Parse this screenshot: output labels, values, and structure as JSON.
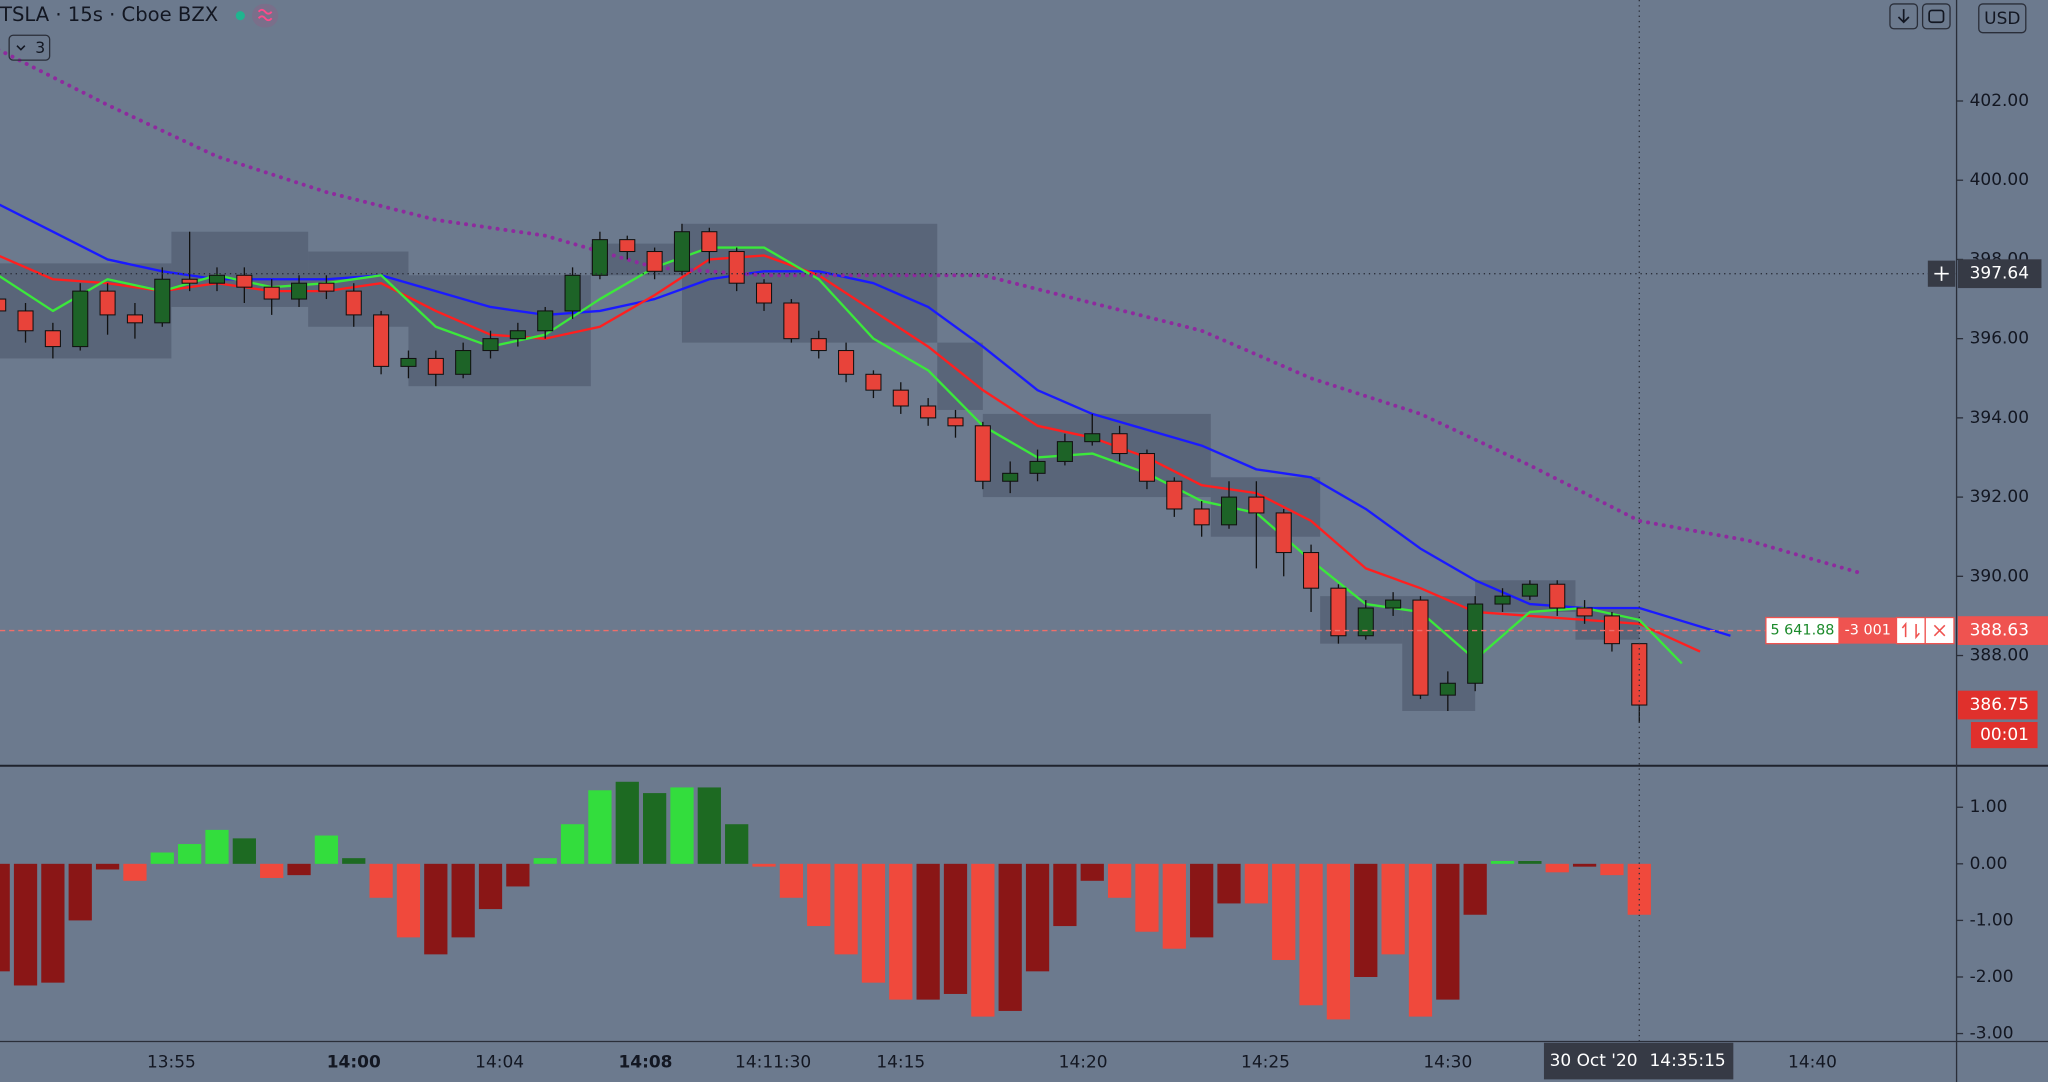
{
  "header": {
    "symbol_title": "TSLA · 15s · Cboe BZX",
    "indicators_hidden": 3,
    "currency": "USD"
  },
  "chart_data": [
    {
      "type": "candlestick",
      "xlim": [
        "13:50:18",
        "14:43:57"
      ],
      "ylim": [
        385.25,
        404.55
      ],
      "yticks": [
        {
          "value": 402,
          "label": "402.00"
        },
        {
          "value": 400,
          "label": "400.00"
        },
        {
          "value": 398,
          "label": "398.00"
        },
        {
          "value": 396,
          "label": "396.00"
        },
        {
          "value": 394,
          "label": "394.00"
        },
        {
          "value": 392,
          "label": "392.00"
        },
        {
          "value": 390,
          "label": "390.00"
        },
        {
          "value": 388,
          "label": "388.00"
        }
      ],
      "xticks": [
        {
          "value": "13:55"
        },
        {
          "value": "14:00",
          "bold": true
        },
        {
          "value": "14:04"
        },
        {
          "value": "14:08",
          "bold": true
        },
        {
          "value": "14:11:30"
        },
        {
          "value": "14:15"
        },
        {
          "value": "14:20"
        },
        {
          "value": "14:25"
        },
        {
          "value": "14:30"
        },
        {
          "value": "14:40"
        }
      ],
      "x": [
        "13:50:15",
        "13:51:00",
        "13:51:45",
        "13:52:30",
        "13:53:15",
        "13:54:00",
        "13:54:45",
        "13:55:30",
        "13:56:15",
        "13:57:00",
        "13:57:45",
        "13:58:30",
        "13:59:15",
        "14:00:00",
        "14:00:45",
        "14:01:30",
        "14:02:15",
        "14:03:00",
        "14:03:45",
        "14:04:30",
        "14:05:15",
        "14:06:00",
        "14:06:45",
        "14:07:30",
        "14:08:15",
        "14:09:00",
        "14:09:45",
        "14:10:30",
        "14:11:15",
        "14:12:00",
        "14:12:45",
        "14:13:30",
        "14:14:15",
        "14:15:00",
        "14:15:45",
        "14:16:30",
        "14:17:15",
        "14:18:00",
        "14:18:45",
        "14:19:30",
        "14:20:15",
        "14:21:00",
        "14:21:45",
        "14:22:30",
        "14:23:15",
        "14:24:00",
        "14:24:45",
        "14:25:30",
        "14:26:15",
        "14:27:00",
        "14:27:45",
        "14:28:30",
        "14:29:15",
        "14:30:00",
        "14:30:45",
        "14:31:30",
        "14:32:15",
        "14:33:00",
        "14:33:45",
        "14:34:30",
        "14:35:15"
      ],
      "open": [
        397.0,
        396.7,
        396.2,
        395.8,
        397.2,
        396.6,
        396.4,
        397.5,
        397.4,
        397.6,
        397.3,
        397.0,
        397.4,
        397.2,
        396.6,
        395.3,
        395.5,
        395.1,
        395.7,
        396.0,
        396.2,
        396.7,
        397.6,
        398.5,
        398.2,
        397.7,
        398.7,
        398.2,
        397.4,
        396.9,
        396.0,
        395.7,
        395.1,
        394.7,
        394.3,
        394.0,
        393.8,
        392.4,
        392.6,
        392.9,
        393.4,
        393.6,
        393.1,
        392.4,
        391.7,
        391.3,
        392.0,
        391.6,
        390.6,
        389.7,
        388.5,
        389.2,
        389.4,
        387.0,
        387.3,
        389.3,
        389.5,
        389.8,
        389.2,
        389.0,
        388.3
      ],
      "high": [
        397.2,
        396.9,
        396.4,
        397.4,
        397.4,
        396.9,
        397.8,
        398.7,
        397.8,
        397.8,
        397.5,
        397.6,
        397.6,
        397.4,
        396.7,
        395.7,
        395.7,
        395.9,
        396.2,
        396.4,
        396.8,
        397.8,
        398.7,
        398.6,
        398.3,
        398.9,
        398.8,
        398.3,
        397.5,
        397.0,
        396.2,
        395.9,
        395.2,
        394.9,
        394.5,
        394.2,
        393.9,
        392.9,
        393.2,
        393.6,
        394.1,
        393.8,
        393.2,
        392.5,
        391.9,
        392.4,
        392.4,
        391.7,
        390.8,
        389.8,
        389.4,
        389.6,
        389.5,
        387.6,
        389.5,
        389.7,
        389.9,
        389.9,
        389.4,
        389.1,
        388.3
      ],
      "low": [
        396.4,
        395.9,
        395.5,
        395.7,
        396.1,
        396.0,
        396.3,
        397.2,
        397.2,
        396.9,
        396.6,
        396.8,
        397.0,
        396.3,
        395.1,
        395.0,
        394.8,
        395.0,
        395.5,
        395.8,
        396.0,
        396.5,
        397.5,
        398.0,
        397.5,
        397.6,
        397.9,
        397.2,
        396.7,
        395.9,
        395.5,
        394.9,
        394.5,
        394.1,
        393.8,
        393.5,
        392.2,
        392.1,
        392.4,
        392.8,
        393.3,
        392.9,
        392.2,
        391.5,
        391.0,
        391.2,
        390.2,
        390.0,
        389.1,
        388.3,
        388.4,
        389.0,
        386.9,
        386.6,
        387.1,
        389.1,
        389.4,
        389.0,
        388.8,
        388.1,
        386.3
      ],
      "close": [
        396.7,
        396.2,
        395.8,
        397.2,
        396.6,
        396.4,
        397.5,
        397.4,
        397.6,
        397.3,
        397.0,
        397.4,
        397.2,
        396.6,
        395.3,
        395.5,
        395.1,
        395.7,
        396.0,
        396.2,
        396.7,
        397.6,
        398.5,
        398.2,
        397.7,
        398.7,
        398.2,
        397.4,
        396.9,
        396.0,
        395.7,
        395.1,
        394.7,
        394.3,
        394.0,
        393.8,
        392.4,
        392.6,
        392.9,
        393.4,
        393.6,
        393.1,
        392.4,
        391.7,
        391.3,
        392.0,
        391.6,
        390.6,
        389.7,
        388.5,
        389.2,
        389.4,
        387.0,
        387.3,
        389.3,
        389.5,
        389.8,
        389.2,
        389.0,
        388.3,
        386.75
      ],
      "up_color": "#1d6327",
      "down_color": "#e8433a",
      "bands": {
        "color": "#4a5467",
        "start": [
          "13:50:15",
          "13:55:00",
          "13:58:45",
          "14:01:30",
          "14:06:30",
          "14:09:00",
          "14:16:00",
          "14:17:15",
          "14:23:30",
          "14:26:30",
          "14:28:45",
          "14:30:45",
          "14:33:30"
        ],
        "end": [
          "13:55:00",
          "13:58:45",
          "14:01:30",
          "14:06:30",
          "14:09:00",
          "14:16:00",
          "14:17:15",
          "14:23:30",
          "14:26:30",
          "14:28:45",
          "14:30:45",
          "14:33:30",
          "14:35:15"
        ],
        "low": [
          395.5,
          396.8,
          396.3,
          394.8,
          397.6,
          395.9,
          394.2,
          392.0,
          391.0,
          388.3,
          386.6,
          389.1,
          388.4
        ],
        "high": [
          397.9,
          398.7,
          398.2,
          397.6,
          398.4,
          398.9,
          395.9,
          394.1,
          392.5,
          389.5,
          389.5,
          389.9,
          389.2
        ]
      },
      "series": [
        {
          "color": "#1a1aff",
          "style": "solid",
          "x": [
            "13:50:15",
            "13:51:45",
            "13:53:15",
            "13:54:45",
            "13:56:15",
            "13:57:45",
            "13:59:15",
            "14:00:45",
            "14:02:15",
            "14:03:45",
            "14:05:15",
            "14:06:45",
            "14:08:15",
            "14:09:45",
            "14:11:15",
            "14:12:45",
            "14:14:15",
            "14:15:45",
            "14:17:15",
            "14:18:45",
            "14:20:15",
            "14:21:45",
            "14:23:15",
            "14:24:45",
            "14:26:15",
            "14:27:45",
            "14:29:15",
            "14:30:45",
            "14:32:15",
            "14:33:45",
            "14:35:15",
            "14:37:45"
          ],
          "values": [
            399.4,
            398.7,
            398.0,
            397.7,
            397.5,
            397.5,
            397.5,
            397.6,
            397.2,
            396.8,
            396.6,
            396.7,
            397.0,
            397.5,
            397.7,
            397.7,
            397.4,
            396.8,
            395.8,
            394.7,
            394.1,
            393.7,
            393.3,
            392.7,
            392.5,
            391.7,
            390.7,
            389.9,
            389.3,
            389.2,
            389.2,
            388.5
          ]
        },
        {
          "color": "#ff1f1f",
          "style": "solid",
          "x": [
            "13:50:15",
            "13:51:45",
            "13:53:15",
            "13:54:45",
            "13:56:15",
            "13:57:45",
            "13:59:15",
            "14:00:45",
            "14:02:15",
            "14:03:45",
            "14:05:15",
            "14:06:45",
            "14:08:15",
            "14:09:45",
            "14:11:15",
            "14:12:45",
            "14:14:15",
            "14:15:45",
            "14:17:15",
            "14:18:45",
            "14:20:15",
            "14:21:45",
            "14:23:15",
            "14:24:45",
            "14:26:15",
            "14:27:45",
            "14:29:15",
            "14:30:45",
            "14:32:15",
            "14:33:45",
            "14:35:15",
            "14:36:55"
          ],
          "values": [
            398.1,
            397.5,
            397.4,
            397.2,
            397.4,
            397.2,
            397.2,
            397.4,
            396.7,
            396.1,
            396.0,
            396.3,
            397.1,
            398.0,
            398.1,
            397.6,
            396.7,
            395.8,
            394.7,
            393.8,
            393.5,
            393.0,
            392.3,
            392.1,
            391.4,
            390.2,
            389.7,
            389.1,
            389.0,
            388.9,
            388.8,
            388.1
          ]
        },
        {
          "color": "#3be83b",
          "style": "solid",
          "x": [
            "13:50:15",
            "13:51:45",
            "13:53:15",
            "13:54:45",
            "13:56:15",
            "13:57:45",
            "13:59:15",
            "14:00:45",
            "14:02:15",
            "14:03:45",
            "14:05:15",
            "14:06:45",
            "14:08:15",
            "14:09:45",
            "14:11:15",
            "14:12:45",
            "14:14:15",
            "14:15:45",
            "14:17:15",
            "14:18:45",
            "14:20:15",
            "14:21:45",
            "14:23:15",
            "14:24:45",
            "14:26:15",
            "14:27:45",
            "14:29:15",
            "14:30:45",
            "14:32:15",
            "14:33:45",
            "14:35:15",
            "14:36:25"
          ],
          "values": [
            397.6,
            396.7,
            397.5,
            397.2,
            397.6,
            397.3,
            397.4,
            397.6,
            396.3,
            395.8,
            396.1,
            397.0,
            397.8,
            398.3,
            398.3,
            397.5,
            396.0,
            395.2,
            393.8,
            393.0,
            393.1,
            392.6,
            391.9,
            391.6,
            390.4,
            389.3,
            389.1,
            387.9,
            389.1,
            389.2,
            388.9,
            387.8
          ]
        },
        {
          "color": "#8e2a9e",
          "style": "dotted",
          "x": [
            "13:50:15",
            "13:53:15",
            "13:56:15",
            "13:59:15",
            "14:02:15",
            "14:05:15",
            "14:08:15",
            "14:11:15",
            "14:14:15",
            "14:17:15",
            "14:20:15",
            "14:23:15",
            "14:26:15",
            "14:29:15",
            "14:32:15",
            "14:35:15",
            "14:38:15",
            "14:41:15"
          ],
          "values": [
            403.3,
            401.9,
            400.6,
            399.7,
            399.0,
            398.6,
            397.8,
            397.6,
            397.6,
            397.6,
            396.9,
            396.2,
            395.0,
            394.1,
            392.8,
            391.4,
            390.9,
            390.1
          ]
        }
      ],
      "crosshair": {
        "x": "14:35:15",
        "x_date": "30 Oct '20",
        "y": 397.64
      },
      "last_price": 386.75,
      "countdown": "00:01",
      "position": {
        "price": 388.63,
        "pnl": "5 641.88",
        "qty": "-3 001"
      }
    },
    {
      "type": "bar",
      "ylim": [
        -3.14,
        1.71
      ],
      "yticks": [
        {
          "value": 1,
          "label": "1.00"
        },
        {
          "value": 0,
          "label": "0.00"
        },
        {
          "value": -1,
          "label": "-1.00"
        },
        {
          "value": -2,
          "label": "-2.00"
        },
        {
          "value": -3,
          "label": "-3.00"
        }
      ],
      "x": [
        "13:50:15",
        "13:51:00",
        "13:51:45",
        "13:52:30",
        "13:53:15",
        "13:54:00",
        "13:54:45",
        "13:55:30",
        "13:56:15",
        "13:57:00",
        "13:57:45",
        "13:58:30",
        "13:59:15",
        "14:00:00",
        "14:00:45",
        "14:01:30",
        "14:02:15",
        "14:03:00",
        "14:03:45",
        "14:04:30",
        "14:05:15",
        "14:06:00",
        "14:06:45",
        "14:07:30",
        "14:08:15",
        "14:09:00",
        "14:09:45",
        "14:10:30",
        "14:11:15",
        "14:12:00",
        "14:12:45",
        "14:13:30",
        "14:14:15",
        "14:15:00",
        "14:15:45",
        "14:16:30",
        "14:17:15",
        "14:18:00",
        "14:18:45",
        "14:19:30",
        "14:20:15",
        "14:21:00",
        "14:21:45",
        "14:22:30",
        "14:23:15",
        "14:24:00",
        "14:24:45",
        "14:25:30",
        "14:26:15",
        "14:27:00",
        "14:27:45",
        "14:28:30",
        "14:29:15",
        "14:30:00",
        "14:30:45",
        "14:31:30",
        "14:32:15",
        "14:33:00",
        "14:33:45",
        "14:34:30",
        "14:35:15"
      ],
      "values": [
        -1.9,
        -2.15,
        -2.1,
        -1.0,
        -0.1,
        -0.3,
        0.2,
        0.35,
        0.6,
        0.45,
        -0.25,
        -0.2,
        0.5,
        0.1,
        -0.6,
        -1.3,
        -1.6,
        -1.3,
        -0.8,
        -0.4,
        0.1,
        0.7,
        1.3,
        1.45,
        1.25,
        1.35,
        1.35,
        0.7,
        -0.05,
        -0.6,
        -1.1,
        -1.6,
        -2.1,
        -2.4,
        -2.4,
        -2.3,
        -2.7,
        -2.6,
        -1.9,
        -1.1,
        -0.3,
        -0.6,
        -1.2,
        -1.5,
        -1.3,
        -0.7,
        -0.7,
        -1.7,
        -2.5,
        -2.75,
        -2.0,
        -1.6,
        -2.7,
        -2.4,
        -0.9,
        0.05,
        0.05,
        -0.15,
        -0.05,
        -0.2,
        -0.9
      ],
      "colors": [
        "#8a1616",
        "#8a1616",
        "#8a1616",
        "#8a1616",
        "#8a1616",
        "#f0493c",
        "#33dd3d",
        "#33dd3d",
        "#33dd3d",
        "#1d6a22",
        "#f0493c",
        "#8a1616",
        "#33dd3d",
        "#1d6a22",
        "#f0493c",
        "#f0493c",
        "#8a1616",
        "#8a1616",
        "#8a1616",
        "#8a1616",
        "#33dd3d",
        "#33dd3d",
        "#33dd3d",
        "#1d6a22",
        "#1d6a22",
        "#33dd3d",
        "#1d6a22",
        "#1d6a22",
        "#f0493c",
        "#f0493c",
        "#f0493c",
        "#f0493c",
        "#f0493c",
        "#f0493c",
        "#8a1616",
        "#8a1616",
        "#f0493c",
        "#8a1616",
        "#8a1616",
        "#8a1616",
        "#8a1616",
        "#f0493c",
        "#f0493c",
        "#f0493c",
        "#8a1616",
        "#8a1616",
        "#f0493c",
        "#f0493c",
        "#f0493c",
        "#f0493c",
        "#8a1616",
        "#f0493c",
        "#f0493c",
        "#8a1616",
        "#8a1616",
        "#33dd3d",
        "#1d6a22",
        "#f0493c",
        "#8a1616",
        "#f0493c",
        "#f0493c"
      ]
    }
  ]
}
